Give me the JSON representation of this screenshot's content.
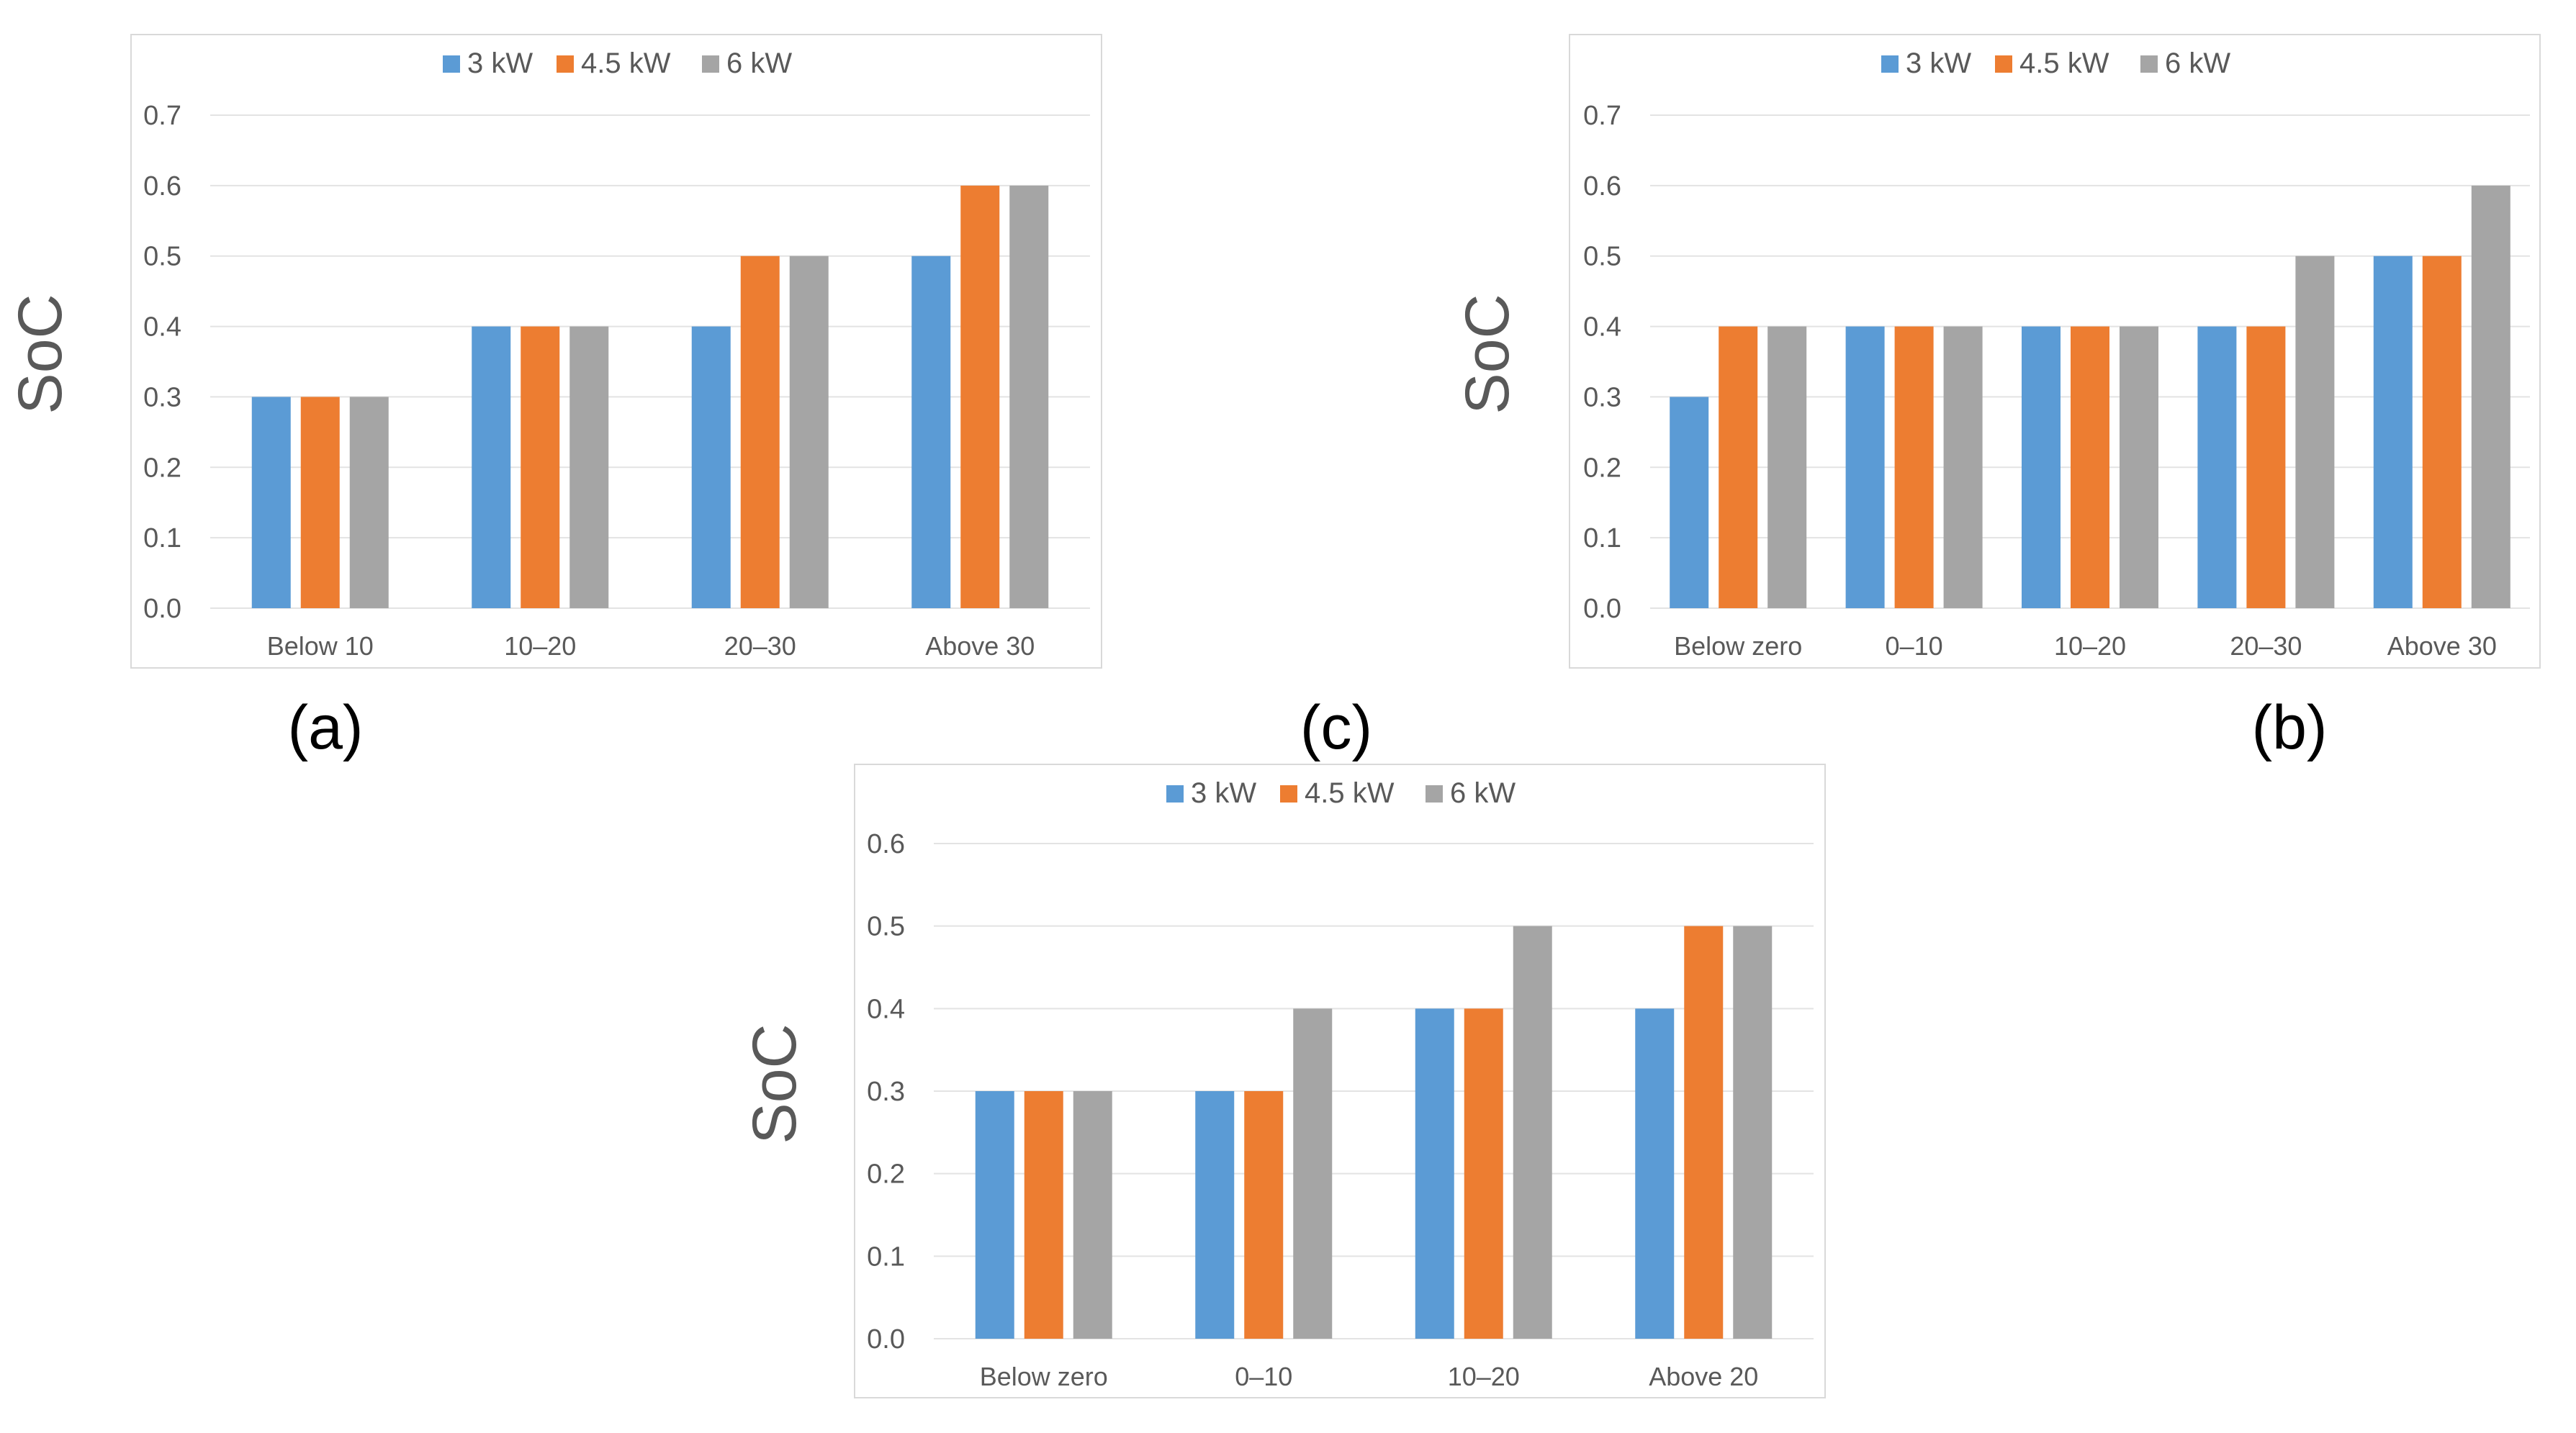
{
  "colors": {
    "3 kW": "#5b9bd5",
    "4.5 kW": "#ed7d31",
    "6 kW": "#a5a5a5"
  },
  "chart_data": [
    {
      "type": "bar",
      "panel": "(a)",
      "title": "",
      "xlabel": "",
      "ylabel": "SoC",
      "ylim": [
        0,
        0.7
      ],
      "yticks": [
        "0.0",
        "0.1",
        "0.2",
        "0.3",
        "0.4",
        "0.5",
        "0.6",
        "0.7"
      ],
      "categories": [
        "Below 10",
        "10–20",
        "20–30",
        "Above 30"
      ],
      "series": [
        {
          "name": "3 kW",
          "values": [
            0.3,
            0.4,
            0.4,
            0.5
          ]
        },
        {
          "name": "4.5 kW",
          "values": [
            0.3,
            0.4,
            0.5,
            0.6
          ]
        },
        {
          "name": "6 kW",
          "values": [
            0.3,
            0.4,
            0.5,
            0.6
          ]
        }
      ],
      "legend": "top-center",
      "grid": true
    },
    {
      "type": "bar",
      "panel": "(b)",
      "title": "",
      "xlabel": "",
      "ylabel": "SoC",
      "ylim": [
        0,
        0.7
      ],
      "yticks": [
        "0.0",
        "0.1",
        "0.2",
        "0.3",
        "0.4",
        "0.5",
        "0.6",
        "0.7"
      ],
      "categories": [
        "Below zero",
        "0–10",
        "10–20",
        "20–30",
        "Above 30"
      ],
      "series": [
        {
          "name": "3 kW",
          "values": [
            0.3,
            0.4,
            0.4,
            0.4,
            0.5
          ]
        },
        {
          "name": "4.5 kW",
          "values": [
            0.4,
            0.4,
            0.4,
            0.4,
            0.5
          ]
        },
        {
          "name": "6 kW",
          "values": [
            0.4,
            0.4,
            0.4,
            0.5,
            0.6
          ]
        }
      ],
      "legend": "top-center",
      "grid": true
    },
    {
      "type": "bar",
      "panel": "(c)",
      "title": "",
      "xlabel": "",
      "ylabel": "SoC",
      "ylim": [
        0,
        0.6
      ],
      "yticks": [
        "0.0",
        "0.1",
        "0.2",
        "0.3",
        "0.4",
        "0.5",
        "0.6"
      ],
      "categories": [
        "Below zero",
        "0–10",
        "10–20",
        "Above 20"
      ],
      "series": [
        {
          "name": "3 kW",
          "values": [
            0.3,
            0.3,
            0.4,
            0.4
          ]
        },
        {
          "name": "4.5 kW",
          "values": [
            0.3,
            0.3,
            0.4,
            0.5
          ]
        },
        {
          "name": "6 kW",
          "values": [
            0.3,
            0.4,
            0.5,
            0.5
          ]
        }
      ],
      "legend": "top-center",
      "grid": true
    }
  ]
}
